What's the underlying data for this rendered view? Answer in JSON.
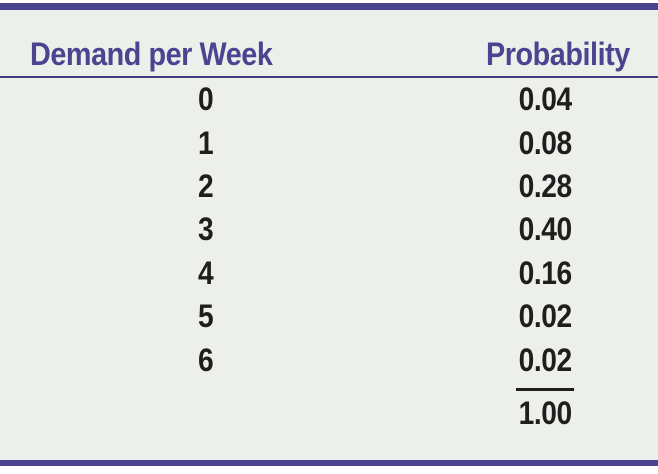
{
  "table": {
    "columns": [
      {
        "label": "Demand per Week"
      },
      {
        "label": "Probability"
      }
    ],
    "rows": [
      {
        "demand": "0",
        "probability": "0.04"
      },
      {
        "demand": "1",
        "probability": "0.08"
      },
      {
        "demand": "2",
        "probability": "0.28"
      },
      {
        "demand": "3",
        "probability": "0.40"
      },
      {
        "demand": "4",
        "probability": "0.16"
      },
      {
        "demand": "5",
        "probability": "0.02"
      },
      {
        "demand": "6",
        "probability": "0.02"
      }
    ],
    "total": "1.00"
  },
  "colors": {
    "accent_header_text": "#4B4591",
    "rule_purple": "#49448D",
    "header_underline": "#413C80",
    "panel_background": "#EDF0EA",
    "body_text": "#1E1E1E",
    "sum_rule": "#1E1E1E"
  },
  "chart_data": {
    "type": "table",
    "title": "",
    "columns": [
      "Demand per Week",
      "Probability"
    ],
    "categories": [
      0,
      1,
      2,
      3,
      4,
      5,
      6
    ],
    "values": [
      0.04,
      0.08,
      0.28,
      0.4,
      0.16,
      0.02,
      0.02
    ],
    "total": 1.0
  }
}
